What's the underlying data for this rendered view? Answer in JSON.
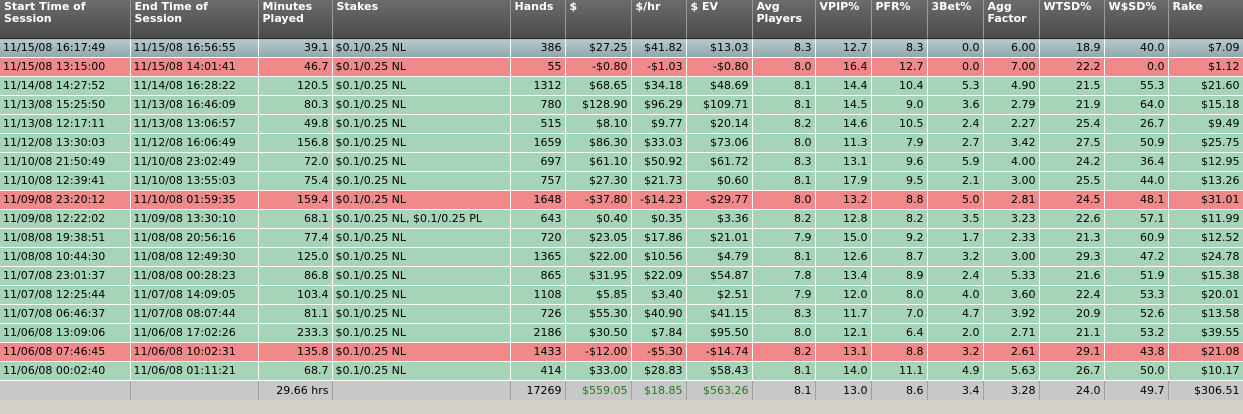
{
  "columns": [
    {
      "key": "start",
      "label": "Start Time of Session",
      "w": 130,
      "align": "left"
    },
    {
      "key": "end",
      "label": "End Time of Session",
      "w": 128,
      "align": "left"
    },
    {
      "key": "minutes",
      "label": "Minutes Played",
      "w": 74,
      "align": "right"
    },
    {
      "key": "stakes",
      "label": "Stakes",
      "w": 178,
      "align": "left"
    },
    {
      "key": "hands",
      "label": "Hands",
      "w": 55,
      "align": "right"
    },
    {
      "key": "dollars",
      "label": "$",
      "w": 66,
      "align": "right"
    },
    {
      "key": "perhr",
      "label": "$/hr",
      "w": 55,
      "align": "right"
    },
    {
      "key": "ev",
      "label": "$ EV",
      "w": 66,
      "align": "right"
    },
    {
      "key": "avgplayers",
      "label": "Avg Players",
      "w": 63,
      "align": "right"
    },
    {
      "key": "vpip",
      "label": "VPIP%",
      "w": 56,
      "align": "right"
    },
    {
      "key": "pfr",
      "label": "PFR%",
      "w": 56,
      "align": "right"
    },
    {
      "key": "threebet",
      "label": "3Bet%",
      "w": 56,
      "align": "right"
    },
    {
      "key": "agg",
      "label": "Agg Factor",
      "w": 56,
      "align": "right"
    },
    {
      "key": "wtsd",
      "label": "WTSD%",
      "w": 65,
      "align": "right"
    },
    {
      "key": "wsd",
      "label": "W$SD%",
      "w": 64,
      "align": "right"
    },
    {
      "key": "rake",
      "label": "Rake",
      "w": 75,
      "align": "right"
    }
  ],
  "rows": [
    {
      "state": "sel",
      "cells": [
        "11/15/08 16:17:49",
        "11/15/08 16:56:55",
        "39.1",
        "$0.1/0.25 NL",
        "386",
        "$27.25",
        "$41.82",
        "$13.03",
        "8.3",
        "12.7",
        "8.3",
        "0.0",
        "6.00",
        "18.9",
        "40.0",
        "$7.09"
      ]
    },
    {
      "state": "loss",
      "cells": [
        "11/15/08 13:15:00",
        "11/15/08 14:01:41",
        "46.7",
        "$0.1/0.25 NL",
        "55",
        "-$0.80",
        "-$1.03",
        "-$0.80",
        "8.0",
        "16.4",
        "12.7",
        "0.0",
        "7.00",
        "22.2",
        "0.0",
        "$1.12"
      ]
    },
    {
      "state": "win",
      "cells": [
        "11/14/08 14:27:52",
        "11/14/08 16:28:22",
        "120.5",
        "$0.1/0.25 NL",
        "1312",
        "$68.65",
        "$34.18",
        "$48.69",
        "8.1",
        "14.4",
        "10.4",
        "5.3",
        "4.90",
        "21.5",
        "55.3",
        "$21.60"
      ]
    },
    {
      "state": "win",
      "cells": [
        "11/13/08 15:25:50",
        "11/13/08 16:46:09",
        "80.3",
        "$0.1/0.25 NL",
        "780",
        "$128.90",
        "$96.29",
        "$109.71",
        "8.1",
        "14.5",
        "9.0",
        "3.6",
        "2.79",
        "21.9",
        "64.0",
        "$15.18"
      ]
    },
    {
      "state": "win",
      "cells": [
        "11/13/08 12:17:11",
        "11/13/08 13:06:57",
        "49.8",
        "$0.1/0.25 NL",
        "515",
        "$8.10",
        "$9.77",
        "$20.14",
        "8.2",
        "14.6",
        "10.5",
        "2.4",
        "2.27",
        "25.4",
        "26.7",
        "$9.49"
      ]
    },
    {
      "state": "win",
      "cells": [
        "11/12/08 13:30:03",
        "11/12/08 16:06:49",
        "156.8",
        "$0.1/0.25 NL",
        "1659",
        "$86.30",
        "$33.03",
        "$73.06",
        "8.0",
        "11.3",
        "7.9",
        "2.7",
        "3.42",
        "27.5",
        "50.9",
        "$25.75"
      ]
    },
    {
      "state": "win",
      "cells": [
        "11/10/08 21:50:49",
        "11/10/08 23:02:49",
        "72.0",
        "$0.1/0.25 NL",
        "697",
        "$61.10",
        "$50.92",
        "$61.72",
        "8.3",
        "13.1",
        "9.6",
        "5.9",
        "4.00",
        "24.2",
        "36.4",
        "$12.95"
      ]
    },
    {
      "state": "win",
      "cells": [
        "11/10/08 12:39:41",
        "11/10/08 13:55:03",
        "75.4",
        "$0.1/0.25 NL",
        "757",
        "$27.30",
        "$21.73",
        "$0.60",
        "8.1",
        "17.9",
        "9.5",
        "2.1",
        "3.00",
        "25.5",
        "44.0",
        "$13.26"
      ]
    },
    {
      "state": "loss",
      "cells": [
        "11/09/08 23:20:12",
        "11/10/08 01:59:35",
        "159.4",
        "$0.1/0.25 NL",
        "1648",
        "-$37.80",
        "-$14.23",
        "-$29.77",
        "8.0",
        "13.2",
        "8.8",
        "5.0",
        "2.81",
        "24.5",
        "48.1",
        "$31.01"
      ]
    },
    {
      "state": "win",
      "cells": [
        "11/09/08 12:22:02",
        "11/09/08 13:30:10",
        "68.1",
        "$0.1/0.25 NL, $0.1/0.25 PL",
        "643",
        "$0.40",
        "$0.35",
        "$3.36",
        "8.2",
        "12.8",
        "8.2",
        "3.5",
        "3.23",
        "22.6",
        "57.1",
        "$11.99"
      ]
    },
    {
      "state": "win",
      "cells": [
        "11/08/08 19:38:51",
        "11/08/08 20:56:16",
        "77.4",
        "$0.1/0.25 NL",
        "720",
        "$23.05",
        "$17.86",
        "$21.01",
        "7.9",
        "15.0",
        "9.2",
        "1.7",
        "2.33",
        "21.3",
        "60.9",
        "$12.52"
      ]
    },
    {
      "state": "win",
      "cells": [
        "11/08/08 10:44:30",
        "11/08/08 12:49:30",
        "125.0",
        "$0.1/0.25 NL",
        "1365",
        "$22.00",
        "$10.56",
        "$4.79",
        "8.1",
        "12.6",
        "8.7",
        "3.2",
        "3.00",
        "29.3",
        "47.2",
        "$24.78"
      ]
    },
    {
      "state": "win",
      "cells": [
        "11/07/08 23:01:37",
        "11/08/08 00:28:23",
        "86.8",
        "$0.1/0.25 NL",
        "865",
        "$31.95",
        "$22.09",
        "$54.87",
        "7.8",
        "13.4",
        "8.9",
        "2.4",
        "5.33",
        "21.6",
        "51.9",
        "$15.38"
      ]
    },
    {
      "state": "win",
      "cells": [
        "11/07/08 12:25:44",
        "11/07/08 14:09:05",
        "103.4",
        "$0.1/0.25 NL",
        "1108",
        "$5.85",
        "$3.40",
        "$2.51",
        "7.9",
        "12.0",
        "8.0",
        "4.0",
        "3.60",
        "22.4",
        "53.3",
        "$20.01"
      ]
    },
    {
      "state": "win",
      "cells": [
        "11/07/08 06:46:37",
        "11/07/08 08:07:44",
        "81.1",
        "$0.1/0.25 NL",
        "726",
        "$55.30",
        "$40.90",
        "$41.15",
        "8.3",
        "11.7",
        "7.0",
        "4.7",
        "3.92",
        "20.9",
        "52.6",
        "$13.58"
      ]
    },
    {
      "state": "win",
      "cells": [
        "11/06/08 13:09:06",
        "11/06/08 17:02:26",
        "233.3",
        "$0.1/0.25 NL",
        "2186",
        "$30.50",
        "$7.84",
        "$95.50",
        "8.0",
        "12.1",
        "6.4",
        "2.0",
        "2.71",
        "21.1",
        "53.2",
        "$39.55"
      ]
    },
    {
      "state": "loss",
      "cells": [
        "11/06/08 07:46:45",
        "11/06/08 10:02:31",
        "135.8",
        "$0.1/0.25 NL",
        "1433",
        "-$12.00",
        "-$5.30",
        "-$14.74",
        "8.2",
        "13.1",
        "8.8",
        "3.2",
        "2.61",
        "29.1",
        "43.8",
        "$21.08"
      ]
    },
    {
      "state": "win",
      "cells": [
        "11/06/08 00:02:40",
        "11/06/08 01:11:21",
        "68.7",
        "$0.1/0.25 NL",
        "414",
        "$33.00",
        "$28.83",
        "$58.43",
        "8.1",
        "14.0",
        "11.1",
        "4.9",
        "5.63",
        "26.7",
        "50.0",
        "$10.17"
      ]
    }
  ],
  "totals": [
    "",
    "",
    "29.66 hrs",
    "",
    "17269",
    "$559.05",
    "$18.85",
    "$563.26",
    "8.1",
    "13.0",
    "8.6",
    "3.4",
    "3.28",
    "24.0",
    "49.7",
    "$306.51"
  ],
  "totals_green_columns": [
    5,
    6,
    7
  ],
  "colors": {
    "win": "#a5d4b8",
    "loss": "#f0898a",
    "header": "#5a5a5a",
    "totals": "#c8c8c8",
    "positive_text": "#1f7a1f"
  }
}
